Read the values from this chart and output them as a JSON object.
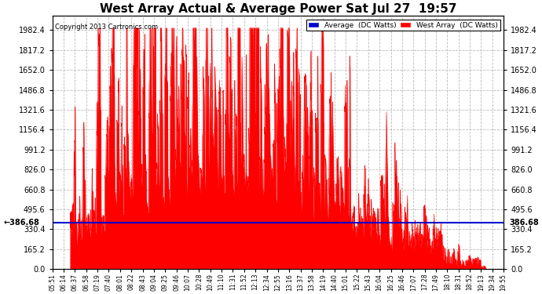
{
  "title": "West Array Actual & Average Power Sat Jul 27  19:57",
  "copyright": "Copyright 2013 Cartronics.com",
  "legend_avg": "Average  (DC Watts)",
  "legend_west": "West Array  (DC Watts)",
  "avg_value": 386.68,
  "ylim": [
    0,
    2100
  ],
  "yticks": [
    0.0,
    165.2,
    330.4,
    495.6,
    660.8,
    826.0,
    991.2,
    1156.4,
    1321.6,
    1486.8,
    1652.0,
    1817.2,
    1982.4
  ],
  "bg_color": "#ffffff",
  "plot_bg_color": "#ffffff",
  "grid_color": "#bbbbbb",
  "red_color": "#ff0000",
  "blue_color": "#0000cc",
  "avg_line_color": "#0000cc",
  "xtick_labels": [
    "05:51",
    "06:14",
    "06:37",
    "06:58",
    "07:19",
    "07:40",
    "08:01",
    "08:22",
    "08:43",
    "09:04",
    "09:25",
    "09:46",
    "10:07",
    "10:28",
    "10:49",
    "11:10",
    "11:31",
    "11:52",
    "12:13",
    "12:34",
    "12:55",
    "13:16",
    "13:37",
    "13:58",
    "14:19",
    "14:40",
    "15:01",
    "15:22",
    "15:43",
    "16:04",
    "16:25",
    "16:46",
    "17:07",
    "17:28",
    "17:49",
    "18:10",
    "18:31",
    "18:52",
    "19:13",
    "19:34",
    "19:55"
  ]
}
